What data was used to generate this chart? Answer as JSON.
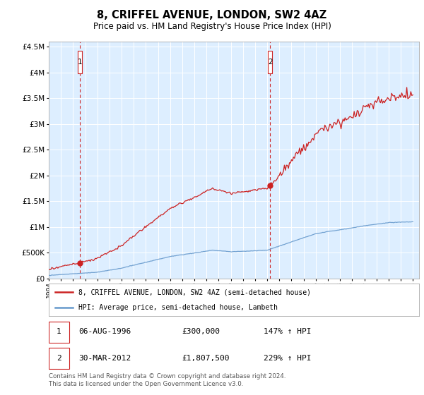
{
  "title": "8, CRIFFEL AVENUE, LONDON, SW2 4AZ",
  "subtitle": "Price paid vs. HM Land Registry's House Price Index (HPI)",
  "xlim": [
    1994.0,
    2024.5
  ],
  "ylim": [
    0,
    4600000
  ],
  "yticks": [
    0,
    500000,
    1000000,
    1500000,
    2000000,
    2500000,
    3000000,
    3500000,
    4000000,
    4500000
  ],
  "xticks": [
    1994,
    1995,
    1996,
    1997,
    1998,
    1999,
    2000,
    2001,
    2002,
    2003,
    2004,
    2005,
    2006,
    2007,
    2008,
    2009,
    2010,
    2011,
    2012,
    2013,
    2014,
    2015,
    2016,
    2017,
    2018,
    2019,
    2020,
    2021,
    2022,
    2023,
    2024
  ],
  "hpi_color": "#6699cc",
  "price_color": "#cc2222",
  "vline_color": "#cc2222",
  "background_color": "#ddeeff",
  "sale1_x": 1996.58,
  "sale1_y": 300000,
  "sale2_x": 2012.25,
  "sale2_y": 1807500,
  "legend_label1": "8, CRIFFEL AVENUE, LONDON, SW2 4AZ (semi-detached house)",
  "legend_label2": "HPI: Average price, semi-detached house, Lambeth",
  "sale1_date": "06-AUG-1996",
  "sale1_price": "£300,000",
  "sale1_hpi": "147% ↑ HPI",
  "sale2_date": "30-MAR-2012",
  "sale2_price": "£1,807,500",
  "sale2_hpi": "229% ↑ HPI",
  "footnote": "Contains HM Land Registry data © Crown copyright and database right 2024.\nThis data is licensed under the Open Government Licence v3.0."
}
